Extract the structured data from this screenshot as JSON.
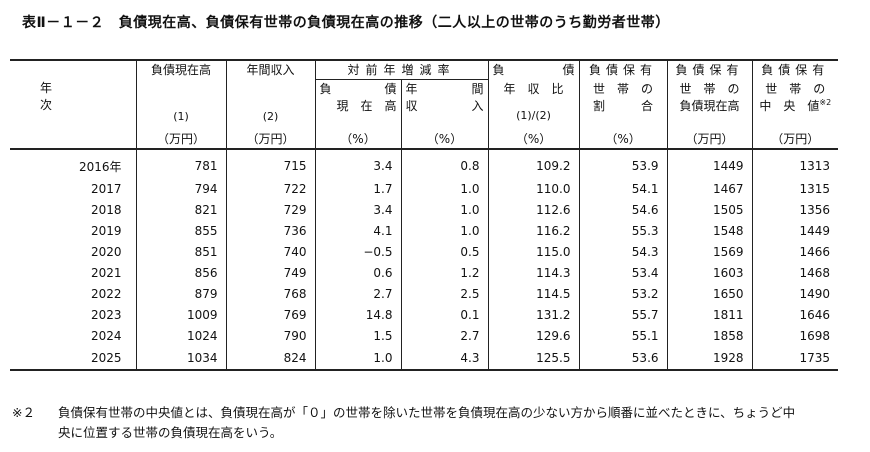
{
  "title": "表Ⅱ－１－２　負債現在高、負債保有世帯の負債現在高の推移（二人以上の世帯のうち勤労者世帯）",
  "headers": {
    "year": "年　次",
    "debt": "負債現在高",
    "income": "年間収入",
    "change_group": "対前年増減率",
    "debt_change_a": "負",
    "debt_change_b": "債",
    "debt_change_c": "現　在　高",
    "income_change_a": "年",
    "income_change_b": "間",
    "income_change_c": "収",
    "income_change_d": "入",
    "ratio_a": "負",
    "ratio_b": "債",
    "ratio_c": "年　収　比",
    "share_a": "負債保有",
    "share_b": "世　帯　の",
    "share_c": "割　　　合",
    "holder_debt_a": "負債保有",
    "holder_debt_b": "世　帯　の",
    "holder_debt_c": "負債現在高",
    "median_a": "負債保有",
    "median_b": "世　帯　の",
    "median_c": "中　央　値",
    "median_mark": "※2",
    "num1": "(1)",
    "num2": "(2)",
    "num_ratio": "(1)/(2)",
    "unit_man": "（万円）",
    "unit_pct": "（%）"
  },
  "rows": [
    {
      "year": "2016年",
      "debt": "781",
      "income": "715",
      "debt_chg": "3.4",
      "inc_chg": "0.8",
      "ratio": "109.2",
      "share": "53.9",
      "holder_debt": "1449",
      "median": "1313"
    },
    {
      "year": "2017",
      "debt": "794",
      "income": "722",
      "debt_chg": "1.7",
      "inc_chg": "1.0",
      "ratio": "110.0",
      "share": "54.1",
      "holder_debt": "1467",
      "median": "1315"
    },
    {
      "year": "2018",
      "debt": "821",
      "income": "729",
      "debt_chg": "3.4",
      "inc_chg": "1.0",
      "ratio": "112.6",
      "share": "54.6",
      "holder_debt": "1505",
      "median": "1356"
    },
    {
      "year": "2019",
      "debt": "855",
      "income": "736",
      "debt_chg": "4.1",
      "inc_chg": "1.0",
      "ratio": "116.2",
      "share": "55.3",
      "holder_debt": "1548",
      "median": "1449"
    },
    {
      "year": "2020",
      "debt": "851",
      "income": "740",
      "debt_chg": "−0.5",
      "inc_chg": "0.5",
      "ratio": "115.0",
      "share": "54.3",
      "holder_debt": "1569",
      "median": "1466"
    },
    {
      "year": "2021",
      "debt": "856",
      "income": "749",
      "debt_chg": "0.6",
      "inc_chg": "1.2",
      "ratio": "114.3",
      "share": "53.4",
      "holder_debt": "1603",
      "median": "1468"
    },
    {
      "year": "2022",
      "debt": "879",
      "income": "768",
      "debt_chg": "2.7",
      "inc_chg": "2.5",
      "ratio": "114.5",
      "share": "53.2",
      "holder_debt": "1650",
      "median": "1490"
    },
    {
      "year": "2023",
      "debt": "1009",
      "income": "769",
      "debt_chg": "14.8",
      "inc_chg": "0.1",
      "ratio": "131.2",
      "share": "55.7",
      "holder_debt": "1811",
      "median": "1646"
    },
    {
      "year": "2024",
      "debt": "1024",
      "income": "790",
      "debt_chg": "1.5",
      "inc_chg": "2.7",
      "ratio": "129.6",
      "share": "55.1",
      "holder_debt": "1858",
      "median": "1698"
    },
    {
      "year": "2025",
      "debt": "1034",
      "income": "824",
      "debt_chg": "1.0",
      "inc_chg": "4.3",
      "ratio": "125.5",
      "share": "53.6",
      "holder_debt": "1928",
      "median": "1735"
    }
  ],
  "note": {
    "mark": "※２",
    "text": "負債保有世帯の中央値とは、負債現在高が「０」の世帯を除いた世帯を負債現在高の少ない方から順番に並べたときに、ちょうど中央に位置する世帯の負債現在高をいう。"
  }
}
